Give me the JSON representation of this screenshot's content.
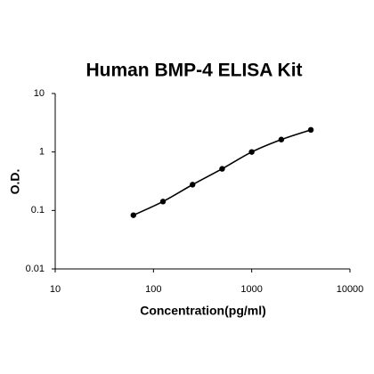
{
  "chart_data": {
    "type": "scatter",
    "title": "Human BMP-4 ELISA Kit",
    "x_label": "Concentration(pg/ml)",
    "y_label": "O.D.",
    "x_scale": "log",
    "y_scale": "log",
    "xlim": [
      10,
      10000
    ],
    "xticks": [
      10,
      100,
      1000,
      10000
    ],
    "ylim": [
      0.01,
      10
    ],
    "yticks": [
      0.01,
      0.1,
      1,
      10
    ],
    "fit_line": true,
    "series": [
      {
        "color": "#000000",
        "x": [
          62.5,
          125,
          250,
          500,
          1000,
          2000,
          4000
        ],
        "values": [
          0.083,
          0.142,
          0.276,
          0.515,
          1.0,
          1.63,
          2.39
        ]
      }
    ]
  }
}
